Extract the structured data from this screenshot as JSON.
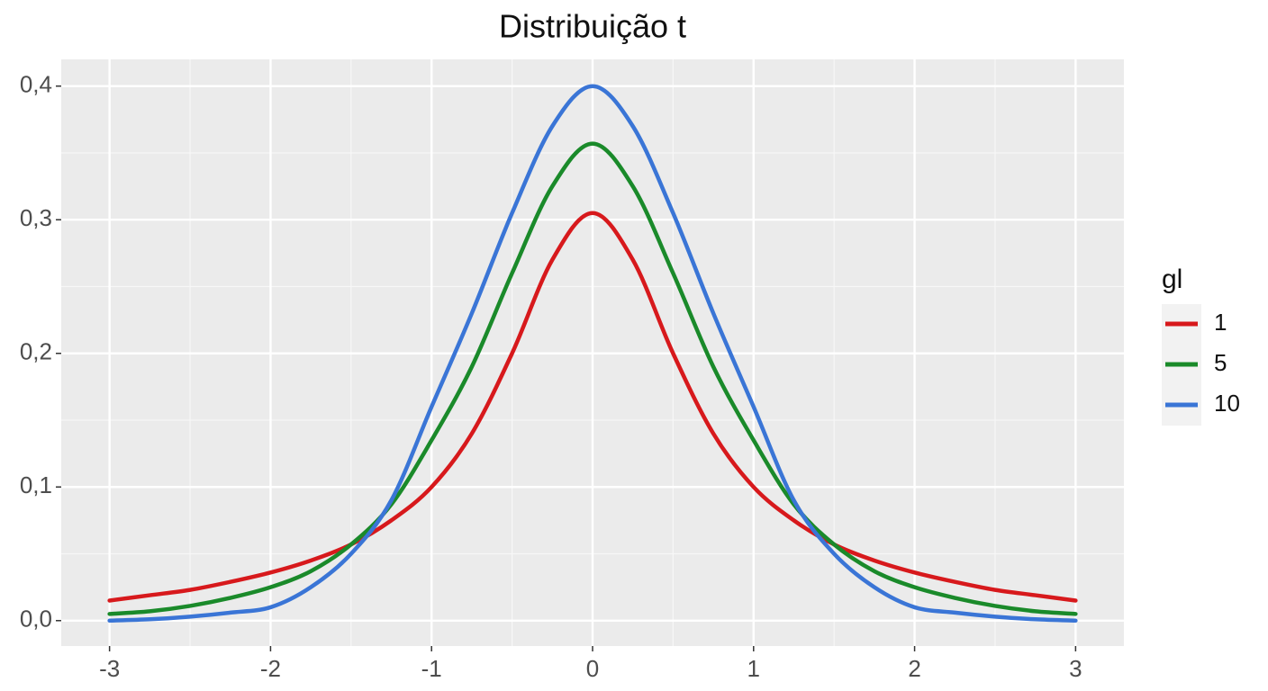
{
  "chart_data": {
    "type": "line",
    "title": "Distribuição t",
    "x": [
      -3,
      -2.75,
      -2.5,
      -2.25,
      -2,
      -1.75,
      -1.5,
      -1.25,
      -1,
      -0.75,
      -0.5,
      -0.25,
      0,
      0.25,
      0.5,
      0.75,
      1,
      1.25,
      1.5,
      1.75,
      2,
      2.25,
      2.5,
      2.75,
      3
    ],
    "series": [
      {
        "name": "1",
        "color": "#d7191c",
        "values": [
          0.015,
          0.019,
          0.023,
          0.029,
          0.036,
          0.045,
          0.057,
          0.075,
          0.1,
          0.14,
          0.2,
          0.27,
          0.305,
          0.27,
          0.2,
          0.14,
          0.1,
          0.075,
          0.057,
          0.045,
          0.036,
          0.029,
          0.023,
          0.019,
          0.015
        ]
      },
      {
        "name": "5",
        "color": "#1a8a2a",
        "values": [
          0.005,
          0.007,
          0.011,
          0.017,
          0.025,
          0.037,
          0.057,
          0.087,
          0.135,
          0.19,
          0.26,
          0.325,
          0.357,
          0.325,
          0.26,
          0.19,
          0.135,
          0.087,
          0.057,
          0.037,
          0.025,
          0.017,
          0.011,
          0.007,
          0.005
        ]
      },
      {
        "name": "10",
        "color": "#3a75d6",
        "values": [
          0.0,
          0.001,
          0.003,
          0.006,
          0.01,
          0.025,
          0.05,
          0.09,
          0.16,
          0.23,
          0.305,
          0.37,
          0.4,
          0.37,
          0.305,
          0.23,
          0.16,
          0.09,
          0.05,
          0.025,
          0.01,
          0.006,
          0.003,
          0.001,
          0.0
        ]
      }
    ],
    "xlim": [
      -3.3,
      3.3
    ],
    "ylim": [
      -0.019,
      0.42
    ],
    "xticks": [
      -3,
      -2,
      -1,
      0,
      1,
      2,
      3
    ],
    "yticks": [
      {
        "value": 0,
        "label": "0,0"
      },
      {
        "value": 0.1,
        "label": "0,1"
      },
      {
        "value": 0.2,
        "label": "0,2"
      },
      {
        "value": 0.3,
        "label": "0,3"
      },
      {
        "value": 0.4,
        "label": "0,4"
      }
    ],
    "x_minor_ticks": [
      -2.5,
      -1.5,
      -0.5,
      0.5,
      1.5,
      2.5
    ],
    "y_minor_ticks": [
      0.05,
      0.15,
      0.25,
      0.35
    ],
    "grid": true,
    "legend_title": "gl",
    "legend_position": "right"
  }
}
